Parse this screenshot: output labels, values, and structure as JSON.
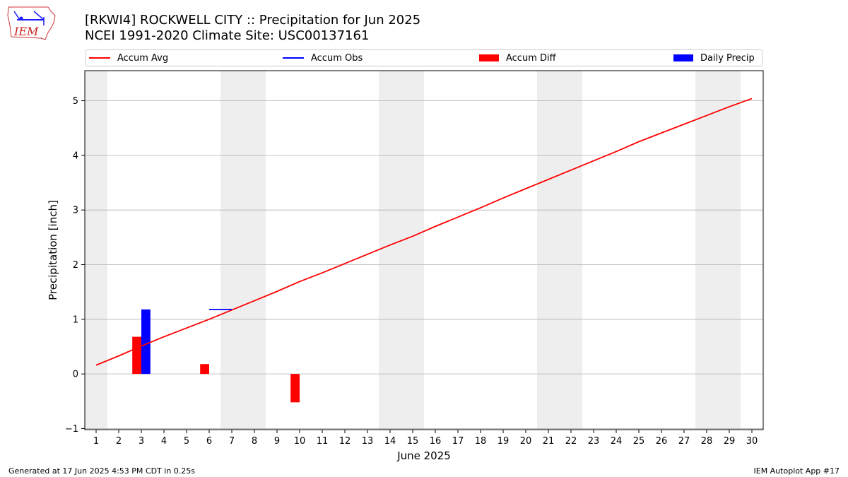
{
  "title_line1": "[RKWI4] ROCKWELL CITY :: Precipitation for Jun 2025",
  "title_line2": "NCEI 1991-2020 Climate Site: USC00137161",
  "logo_text": "IEM",
  "footer_left": "Generated at 17 Jun 2025 4:53 PM CDT in 0.25s",
  "footer_right": "IEM Autoplot App #17",
  "colors": {
    "avg": "#ff0000",
    "obs": "#0000ff",
    "diff": "#ff0000",
    "daily": "#0000ff",
    "weekend": "#eeeeee",
    "grid": "#b0b0b0"
  },
  "legend": [
    {
      "label": "Accum Avg",
      "kind": "line",
      "color": "#ff0000"
    },
    {
      "label": "Accum Obs",
      "kind": "line",
      "color": "#0000ff"
    },
    {
      "label": "Accum Diff",
      "kind": "box",
      "color": "#ff0000"
    },
    {
      "label": "Daily Precip",
      "kind": "box",
      "color": "#0000ff"
    }
  ],
  "chart_data": {
    "type": "bar",
    "xlabel": "June 2025",
    "ylabel": "Precipitation [inch]",
    "xlim": [
      0.5,
      30.5
    ],
    "ylim": [
      -1.02,
      5.55
    ],
    "yticks": [
      -1,
      0,
      1,
      2,
      3,
      4,
      5
    ],
    "days": [
      1,
      2,
      3,
      4,
      5,
      6,
      7,
      8,
      9,
      10,
      11,
      12,
      13,
      14,
      15,
      16,
      17,
      18,
      19,
      20,
      21,
      22,
      23,
      24,
      25,
      26,
      27,
      28,
      29,
      30
    ],
    "weekend_days": [
      1,
      7,
      8,
      14,
      15,
      21,
      22,
      28,
      29
    ],
    "grid": true,
    "legend_position": "top",
    "series": [
      {
        "name": "Accum Avg",
        "type": "line",
        "x": [
          1,
          2,
          3,
          4,
          5,
          6,
          7,
          8,
          9,
          10,
          11,
          12,
          13,
          14,
          15,
          16,
          17,
          18,
          19,
          20,
          21,
          22,
          23,
          24,
          25,
          26,
          27,
          28,
          29,
          30
        ],
        "values": [
          0.16,
          0.33,
          0.51,
          0.68,
          0.84,
          1.0,
          1.17,
          1.34,
          1.51,
          1.69,
          1.85,
          2.02,
          2.19,
          2.36,
          2.52,
          2.7,
          2.87,
          3.04,
          3.22,
          3.39,
          3.56,
          3.73,
          3.9,
          4.07,
          4.25,
          4.41,
          4.57,
          4.73,
          4.89,
          5.04
        ]
      },
      {
        "name": "Accum Obs",
        "type": "line",
        "x": [
          6,
          7
        ],
        "values": [
          1.18,
          1.18
        ]
      },
      {
        "name": "Accum Diff",
        "type": "bar",
        "x": [
          3,
          6,
          10
        ],
        "values": [
          0.68,
          0.18,
          -0.52
        ]
      },
      {
        "name": "Daily Precip",
        "type": "bar",
        "x": [
          3
        ],
        "values": [
          1.18
        ]
      }
    ]
  }
}
